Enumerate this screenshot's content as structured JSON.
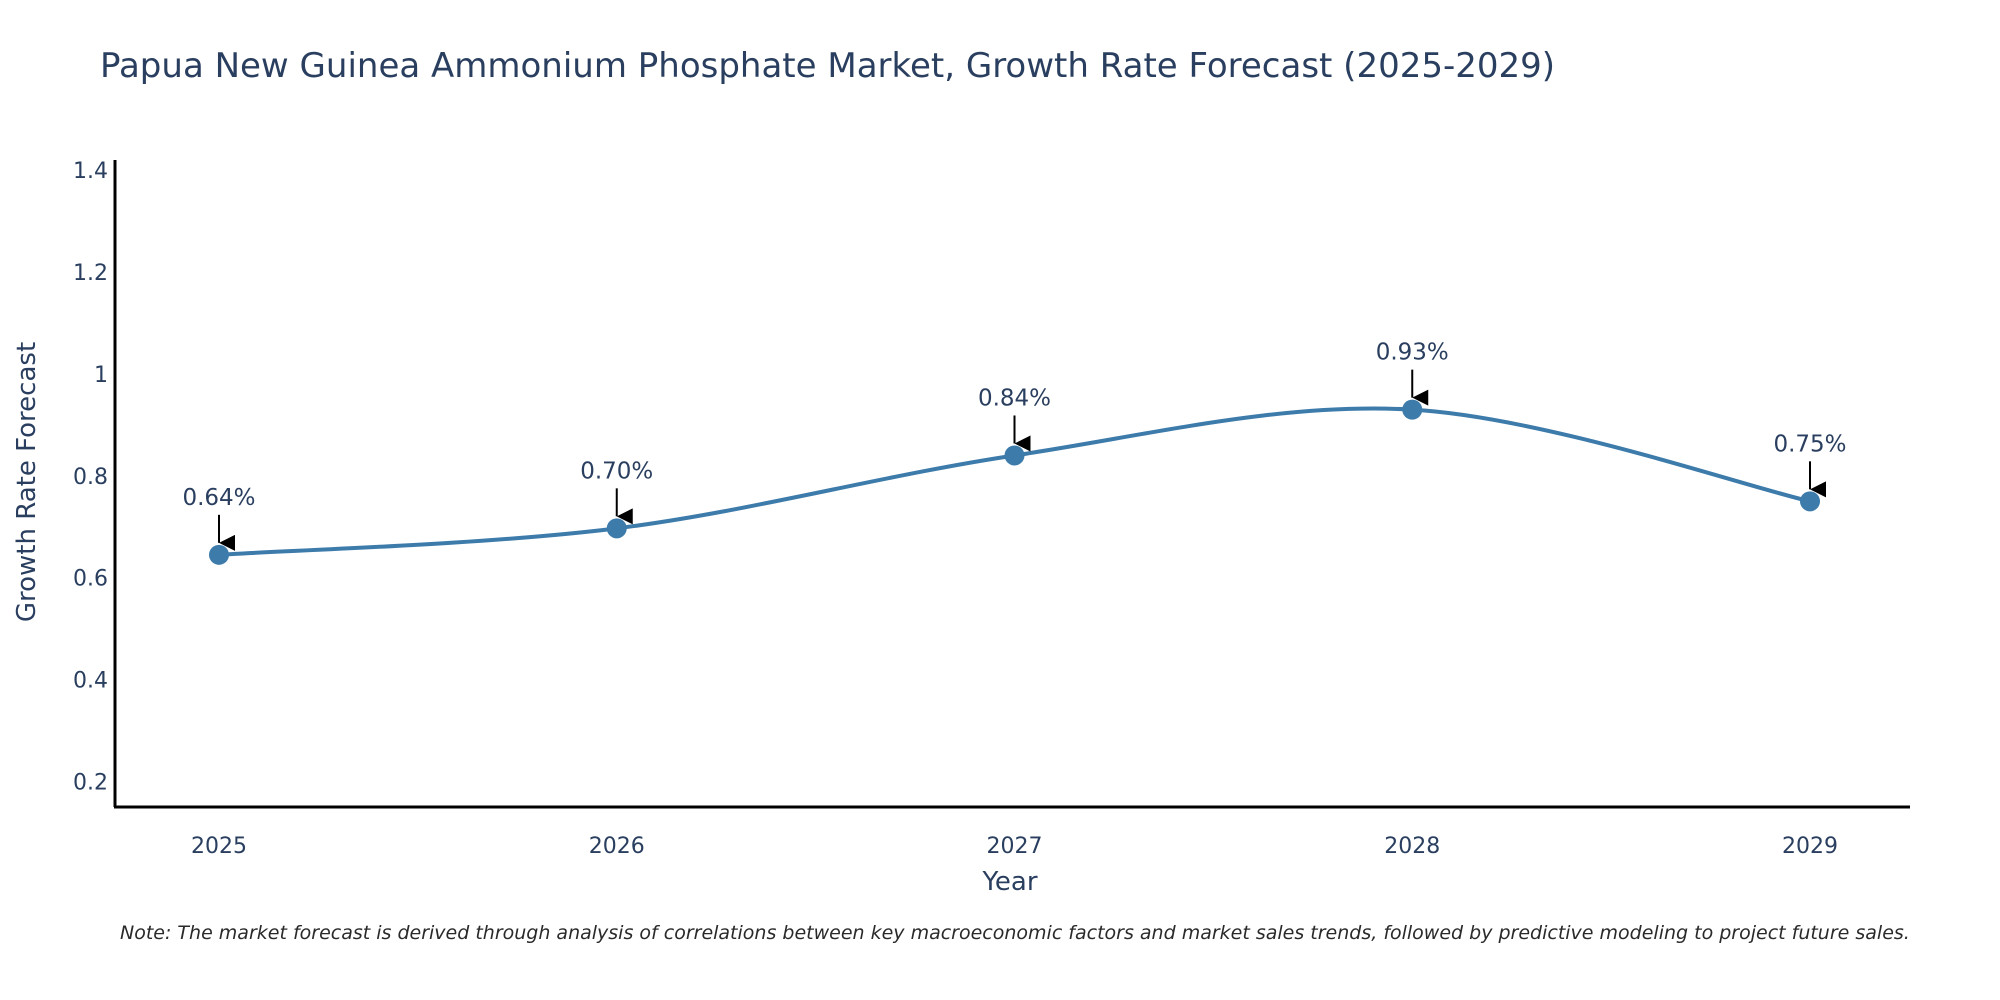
{
  "chart_data": {
    "type": "line",
    "title": "Papua New Guinea Ammonium Phosphate Market, Growth Rate Forecast (2025-2029)",
    "xlabel": "Year",
    "ylabel": "Growth Rate Forecast",
    "categories": [
      "2025",
      "2026",
      "2027",
      "2028",
      "2029"
    ],
    "values": [
      0.645,
      0.697,
      0.84,
      0.93,
      0.75
    ],
    "data_labels": [
      "0.64%",
      "0.70%",
      "0.84%",
      "0.93%",
      "0.75%"
    ],
    "ylim": [
      0.15,
      1.42
    ],
    "y_ticks": [
      0.2,
      0.4,
      0.6,
      0.8,
      1,
      1.2,
      1.4
    ],
    "y_tick_labels": [
      "0.2",
      "0.4",
      "0.6",
      "0.8",
      "1",
      "1.2",
      "1.4"
    ],
    "grid": false,
    "line_color": "#3d7bab",
    "marker_color": "#3d7bab",
    "arrow_color": "#000000",
    "axis_color": "#000000"
  },
  "note": "Note: The market forecast is derived through analysis of correlations between key macroeconomic factors and market sales trends, followed by predictive modeling to project future sales."
}
